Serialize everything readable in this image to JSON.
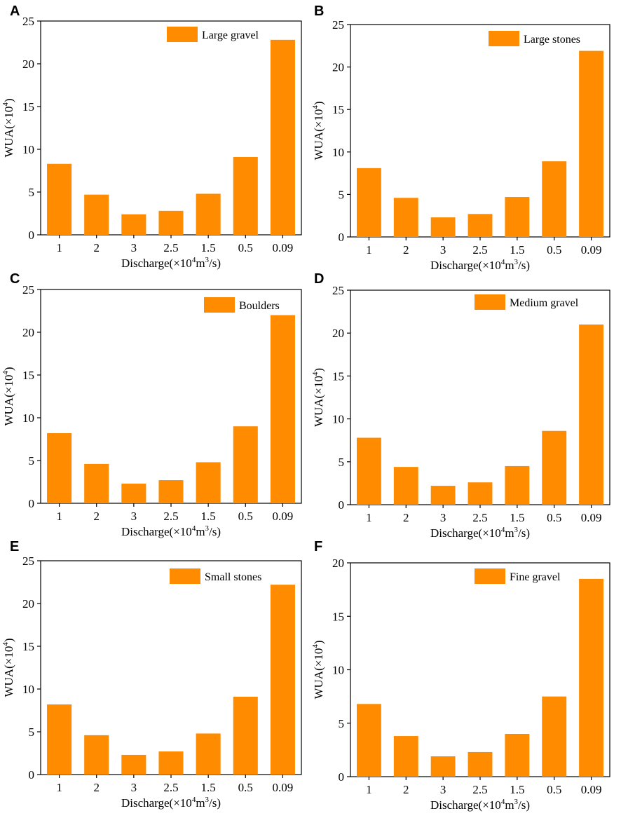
{
  "colors": {
    "bar": "#ff8c00",
    "axis": "#000000"
  },
  "chart_data": [
    {
      "panel": "A",
      "type": "bar",
      "categories": [
        "1",
        "2",
        "3",
        "2.5",
        "1.5",
        "0.5",
        "0.09"
      ],
      "values": [
        8.3,
        4.7,
        2.4,
        2.8,
        4.8,
        9.1,
        22.8
      ],
      "legend": "Large gravel",
      "ylabel": {
        "base": "WUA(×10",
        "sup": "4",
        "tail": ")"
      },
      "xlabel": {
        "base": "Discharge(×10",
        "sup1": "4",
        "mid": "m",
        "sup2": "3",
        "tail": "/s)"
      },
      "ylim": [
        0,
        25
      ],
      "yticks": [
        0,
        5,
        10,
        15,
        20,
        25
      ]
    },
    {
      "panel": "B",
      "type": "bar",
      "categories": [
        "1",
        "2",
        "3",
        "2.5",
        "1.5",
        "0.5",
        "0.09"
      ],
      "values": [
        8.1,
        4.6,
        2.3,
        2.7,
        4.7,
        8.9,
        21.9
      ],
      "legend": "Large stones",
      "ylabel": {
        "base": "WUA(×10",
        "sup": "4",
        "tail": ")"
      },
      "xlabel": {
        "base": "Discharge(×10",
        "sup1": "4",
        "mid": "m",
        "sup2": "3",
        "tail": "/s)"
      },
      "ylim": [
        0,
        25
      ],
      "yticks": [
        0,
        5,
        10,
        15,
        20,
        25
      ]
    },
    {
      "panel": "C",
      "type": "bar",
      "categories": [
        "1",
        "2",
        "3",
        "2.5",
        "1.5",
        "0.5",
        "0.09"
      ],
      "values": [
        8.2,
        4.6,
        2.3,
        2.7,
        4.8,
        9.0,
        22.0
      ],
      "legend": "Boulders",
      "ylabel": {
        "base": "WUA(×10",
        "sup": "4",
        "tail": ")"
      },
      "xlabel": {
        "base": "Discharge(×10",
        "sup1": "4",
        "mid": "m",
        "sup2": "3",
        "tail": "/s)"
      },
      "ylim": [
        0,
        25
      ],
      "yticks": [
        0,
        5,
        10,
        15,
        20,
        25
      ]
    },
    {
      "panel": "D",
      "type": "bar",
      "categories": [
        "1",
        "2",
        "3",
        "2.5",
        "1.5",
        "0.5",
        "0.09"
      ],
      "values": [
        7.8,
        4.4,
        2.2,
        2.6,
        4.5,
        8.6,
        21.0
      ],
      "legend": "Medium gravel",
      "ylabel": {
        "base": "WUA(×10",
        "sup": "4",
        "tail": ")"
      },
      "xlabel": {
        "base": "Discharge(×10",
        "sup1": "4",
        "mid": "m",
        "sup2": "3",
        "tail": "/s)"
      },
      "ylim": [
        0,
        25
      ],
      "yticks": [
        0,
        5,
        10,
        15,
        20,
        25
      ]
    },
    {
      "panel": "E",
      "type": "bar",
      "categories": [
        "1",
        "2",
        "3",
        "2.5",
        "1.5",
        "0.5",
        "0.09"
      ],
      "values": [
        8.2,
        4.6,
        2.3,
        2.7,
        4.8,
        9.1,
        22.2
      ],
      "legend": "Small stones",
      "ylabel": {
        "base": "WUA(×10",
        "sup": "4",
        "tail": ")"
      },
      "xlabel": {
        "base": "Discharge(×10",
        "sup1": "4",
        "mid": "m",
        "sup2": "3",
        "tail": "/s)"
      },
      "ylim": [
        0,
        25
      ],
      "yticks": [
        0,
        5,
        10,
        15,
        20,
        25
      ]
    },
    {
      "panel": "F",
      "type": "bar",
      "categories": [
        "1",
        "2",
        "3",
        "2.5",
        "1.5",
        "0.5",
        "0.09"
      ],
      "values": [
        6.8,
        3.8,
        1.9,
        2.3,
        4.0,
        7.5,
        18.5
      ],
      "legend": "Fine gravel",
      "ylabel": {
        "base": "WUA(×10",
        "sup": "4",
        "tail": ")"
      },
      "xlabel": {
        "base": "Discharge(×10",
        "sup1": "4",
        "mid": "m",
        "sup2": "3",
        "tail": "/s)"
      },
      "ylim": [
        0,
        20
      ],
      "yticks": [
        0,
        5,
        10,
        15,
        20
      ]
    }
  ]
}
